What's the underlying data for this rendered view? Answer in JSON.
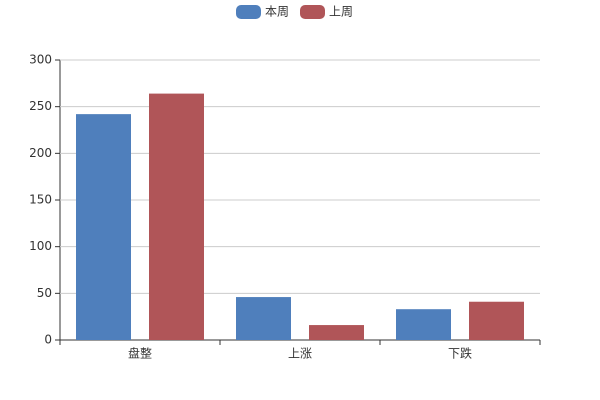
{
  "chart_data": {
    "type": "bar",
    "categories": [
      "盘整",
      "上涨",
      "下跌"
    ],
    "series": [
      {
        "name": "本周",
        "color": "#4f7fbc",
        "values": [
          242,
          46,
          33
        ]
      },
      {
        "name": "上周",
        "color": "#b05558",
        "values": [
          264,
          16,
          41
        ]
      }
    ],
    "ylim": [
      0,
      300
    ],
    "yticks": [
      0,
      50,
      100,
      150,
      200,
      250,
      300
    ],
    "grid": true,
    "legend": "top"
  }
}
